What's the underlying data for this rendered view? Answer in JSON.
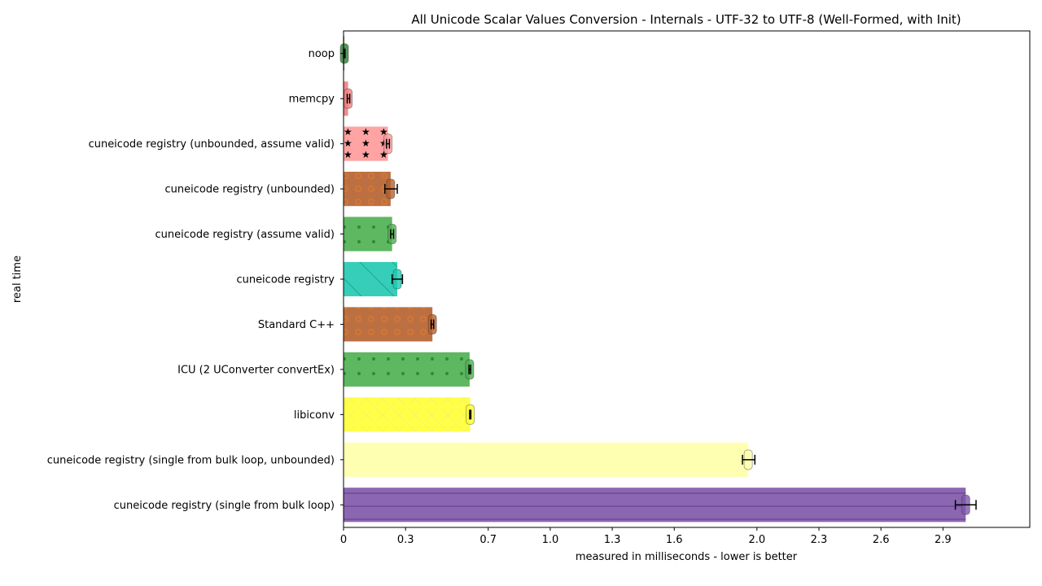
{
  "chart_data": {
    "type": "bar",
    "orientation": "horizontal",
    "title": "All Unicode Scalar Values Conversion - Internals - UTF-32 to UTF-8 (Well-Formed, with Init)",
    "xlabel": "measured in milliseconds - lower is better",
    "ylabel": "real time",
    "xlim": [
      0,
      3.32
    ],
    "xticks": [
      0,
      0.3,
      0.7,
      1.0,
      1.3,
      1.6,
      2.0,
      2.3,
      2.6,
      2.9
    ],
    "xtick_labels": [
      "0",
      "0.3",
      "0.7",
      "1.0",
      "1.3",
      "1.6",
      "2.0",
      "2.3",
      "2.6",
      "2.9"
    ],
    "grid": false,
    "categories": [
      "noop",
      "memcpy",
      "cuneicode registry (unbounded, assume valid)",
      "cuneicode registry (unbounded)",
      "cuneicode registry (assume valid)",
      "cuneicode registry",
      "Standard C++",
      "ICU (2 UConverter convertEx)",
      "libiconv",
      "cuneicode registry (single from bulk loop, unbounded)",
      "cuneicode registry (single from bulk loop)"
    ],
    "values": [
      0.004,
      0.022,
      0.215,
      0.228,
      0.235,
      0.26,
      0.43,
      0.61,
      0.613,
      1.958,
      3.01
    ],
    "error_low": [
      0.0,
      0.018,
      0.208,
      0.2,
      0.228,
      0.235,
      0.424,
      0.607,
      0.61,
      1.93,
      2.96
    ],
    "error_high": [
      0.007,
      0.03,
      0.222,
      0.26,
      0.242,
      0.285,
      0.436,
      0.615,
      0.616,
      1.99,
      3.06
    ],
    "colors": [
      "#2e7d32",
      "#f08080",
      "#ff9999",
      "#b5602d",
      "#4caf50",
      "#20c9b0",
      "#b5602d",
      "#4caf50",
      "#ffff33",
      "#ffffaa",
      "#7e57aa"
    ],
    "patterns": [
      "none",
      "none",
      "stars",
      "circles",
      "dots",
      "diagonal",
      "circles",
      "dots",
      "crosses",
      "none",
      "hlines"
    ]
  }
}
